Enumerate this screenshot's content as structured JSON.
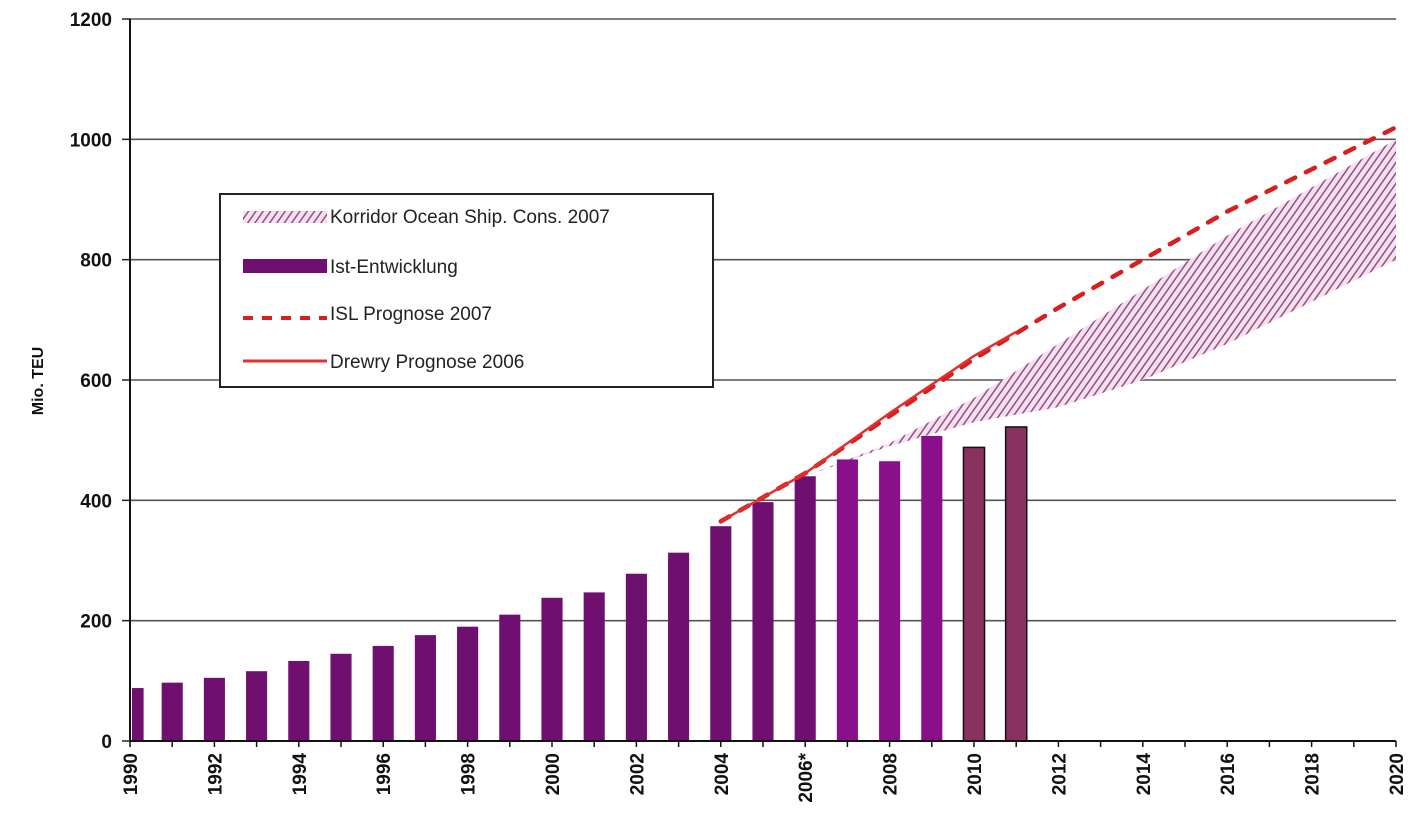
{
  "chart_data": {
    "type": "bar",
    "ylabel": "Mio. TEU",
    "ylim": [
      0,
      1200
    ],
    "yticks": [
      "0",
      "200",
      "400",
      "600",
      "800",
      "1000",
      "1200"
    ],
    "x_range": [
      1990,
      2020
    ],
    "x_tick_labels": [
      "1990",
      "1992",
      "1994",
      "1996",
      "1998",
      "2000",
      "2002",
      "2004",
      "2006*",
      "2008",
      "2010",
      "2012",
      "2014",
      "2016",
      "2018",
      "2020"
    ],
    "grid": "horizontal",
    "legend_placement": "upper-left",
    "legend": [
      {
        "label": "Korridor Ocean Ship. Cons. 2007",
        "style": "hatched-band"
      },
      {
        "label": "Ist-Entwicklung",
        "style": "bar"
      },
      {
        "label": "ISL Prognose 2007",
        "style": "dashed-line"
      },
      {
        "label": "Drewry Prognose 2006",
        "style": "solid-line"
      }
    ],
    "bars": {
      "name": "Ist-Entwicklung",
      "x": [
        1990,
        1991,
        1992,
        1993,
        1994,
        1995,
        1996,
        1997,
        1998,
        1999,
        2000,
        2001,
        2002,
        2003,
        2004,
        2005,
        2006,
        2007,
        2008,
        2009,
        2010,
        2011
      ],
      "values": [
        88,
        97,
        105,
        116,
        133,
        145,
        158,
        176,
        190,
        210,
        238,
        247,
        278,
        313,
        357,
        397,
        440,
        468,
        465,
        507,
        488,
        522
      ],
      "colors": [
        "#6f0f6f",
        "#6f0f6f",
        "#6f0f6f",
        "#6f0f6f",
        "#6f0f6f",
        "#6f0f6f",
        "#6f0f6f",
        "#6f0f6f",
        "#6f0f6f",
        "#6f0f6f",
        "#6f0f6f",
        "#6f0f6f",
        "#6f0f6f",
        "#6f0f6f",
        "#6f0f6f",
        "#6f0f6f",
        "#6f0f6f",
        "#8a0f8a",
        "#8a0f8a",
        "#8a0f8a",
        "#8a3160",
        "#8a3160"
      ]
    },
    "corridor": {
      "name": "Korridor Ocean Ship. Cons. 2007",
      "x": [
        2006,
        2008,
        2010,
        2012,
        2014,
        2016,
        2018,
        2020
      ],
      "lower": [
        440,
        490,
        530,
        555,
        600,
        660,
        730,
        800
      ],
      "upper": [
        440,
        495,
        570,
        660,
        750,
        840,
        920,
        1000
      ],
      "color": "#9a4a8a"
    },
    "isl_forecast": {
      "name": "ISL Prognose 2007",
      "x": [
        2004,
        2006,
        2008,
        2010,
        2012,
        2014,
        2016,
        2018,
        2020
      ],
      "values": [
        365,
        445,
        540,
        635,
        720,
        800,
        880,
        950,
        1020
      ],
      "color": "#d81e1e"
    },
    "drewry_forecast": {
      "name": "Drewry Prognose 2006",
      "x": [
        2004,
        2006,
        2008,
        2010,
        2011
      ],
      "values": [
        365,
        445,
        545,
        640,
        680
      ],
      "color": "#e03030"
    }
  }
}
